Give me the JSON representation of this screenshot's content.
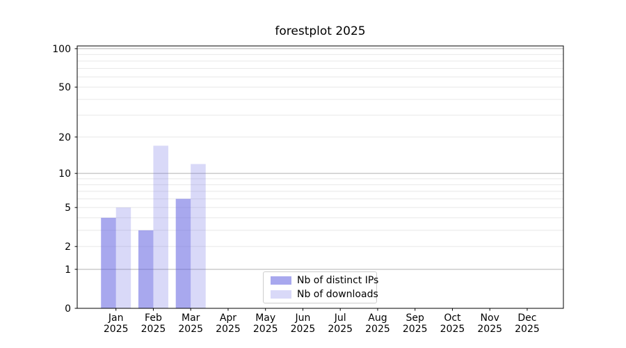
{
  "chart_data": {
    "type": "bar",
    "title": "forestplot 2025",
    "categories": [
      "Jan 2025",
      "Feb 2025",
      "Mar 2025",
      "Apr 2025",
      "May 2025",
      "Jun 2025",
      "Jul 2025",
      "Aug 2025",
      "Sep 2025",
      "Oct 2025",
      "Nov 2025",
      "Dec 2025"
    ],
    "series": [
      {
        "name": "Nb of distinct IPs",
        "color": "rgba(97,97,224,0.55)",
        "values": [
          4,
          3,
          6,
          0,
          0,
          0,
          0,
          0,
          0,
          0,
          0,
          0
        ]
      },
      {
        "name": "Nb of downloads",
        "color": "rgba(97,97,224,0.24)",
        "values": [
          5,
          17,
          12,
          0,
          0,
          0,
          0,
          0,
          0,
          0,
          0,
          0
        ]
      }
    ],
    "yscale": "log1p",
    "ylim": [
      0,
      105
    ],
    "y_tick_labels": [
      0,
      1,
      2,
      5,
      10,
      20,
      50,
      100
    ],
    "y_major_gridlines": [
      1,
      10,
      100
    ],
    "y_minor_gridlines": [
      2,
      3,
      4,
      5,
      6,
      7,
      8,
      9,
      20,
      30,
      40,
      50,
      60,
      70,
      80,
      90
    ],
    "grid": "horizontal",
    "legend_position": "lower center",
    "colors": {
      "bar_dark": "rgba(97,97,224,0.55)",
      "bar_light": "rgba(97,97,224,0.24)",
      "major_grid": "#b2b2b2",
      "minor_grid": "#e8e8e8",
      "axis": "#000000",
      "text": "#000000",
      "legend_border": "#cccccc",
      "background": "#ffffff"
    }
  }
}
